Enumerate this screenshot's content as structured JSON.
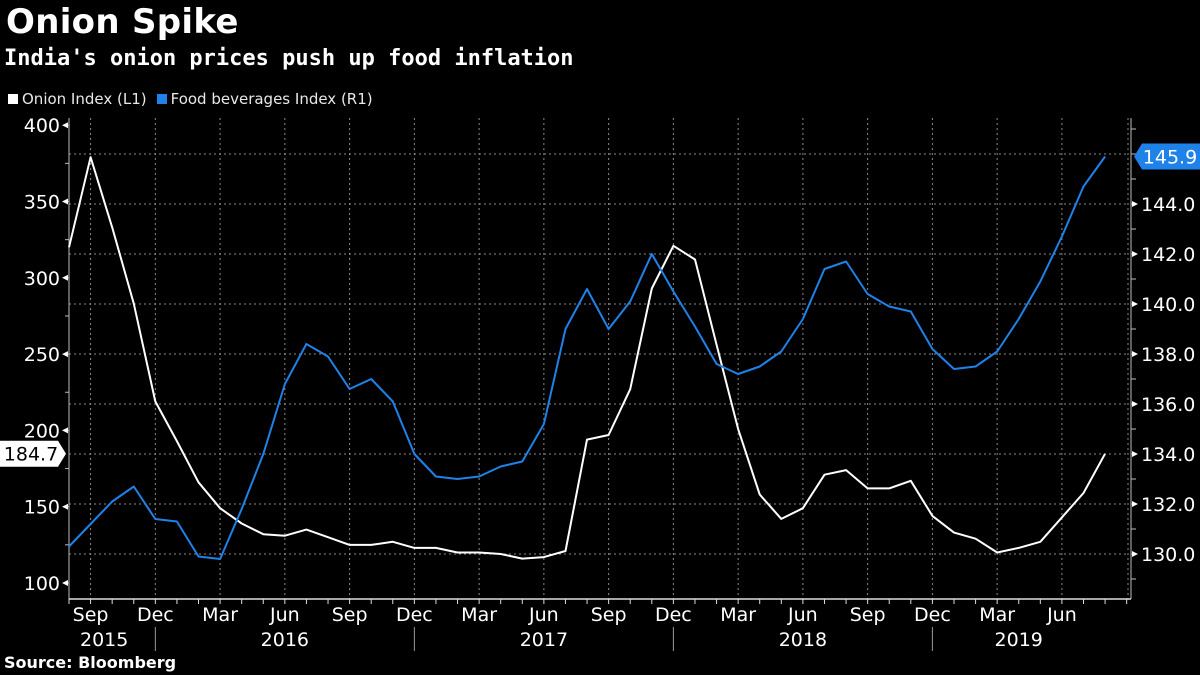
{
  "header": {
    "title": "Onion Spike",
    "subtitle": "India's onion prices push up food inflation"
  },
  "legend": [
    {
      "label": "Onion Index (L1)",
      "color": "#ffffff"
    },
    {
      "label": "Food beverages Index (R1)",
      "color": "#1f82e8"
    }
  ],
  "footer": {
    "source": "Source: Bloomberg"
  },
  "chart_data": {
    "type": "line",
    "title": "Onion Spike",
    "subtitle": "India's onion prices push up food inflation",
    "x": [
      "2015-08",
      "2015-09",
      "2015-10",
      "2015-11",
      "2015-12",
      "2016-01",
      "2016-02",
      "2016-03",
      "2016-04",
      "2016-05",
      "2016-06",
      "2016-07",
      "2016-08",
      "2016-09",
      "2016-10",
      "2016-11",
      "2016-12",
      "2017-01",
      "2017-02",
      "2017-03",
      "2017-04",
      "2017-05",
      "2017-06",
      "2017-07",
      "2017-08",
      "2017-09",
      "2017-10",
      "2017-11",
      "2017-12",
      "2018-01",
      "2018-02",
      "2018-03",
      "2018-04",
      "2018-05",
      "2018-06",
      "2018-07",
      "2018-08",
      "2018-09",
      "2018-10",
      "2018-11",
      "2018-12",
      "2019-01",
      "2019-02",
      "2019-03",
      "2019-04",
      "2019-05",
      "2019-06",
      "2019-07",
      "2019-08"
    ],
    "series": [
      {
        "name": "Onion Index (L1)",
        "axis": "left",
        "color": "#ffffff",
        "values": [
          320,
          379,
          333,
          283,
          219,
          193,
          166,
          149,
          139,
          132,
          131,
          135,
          130,
          125,
          125,
          127,
          123,
          123,
          120,
          120,
          119,
          116,
          117,
          121,
          194,
          197,
          227,
          293,
          321,
          312,
          256,
          201,
          158,
          142,
          149,
          171,
          174,
          162,
          162,
          167,
          144,
          133,
          129,
          120,
          123,
          127,
          143,
          159,
          184.7
        ],
        "last_value_label": "184.7"
      },
      {
        "name": "Food beverages Index (R1)",
        "axis": "right",
        "color": "#1f82e8",
        "values": [
          130.3,
          131.2,
          132.1,
          132.7,
          131.4,
          131.3,
          129.9,
          129.8,
          131.8,
          134.0,
          136.8,
          138.4,
          137.9,
          136.6,
          137.0,
          136.1,
          134.0,
          133.1,
          133.0,
          133.1,
          133.5,
          133.7,
          135.2,
          139.0,
          140.6,
          139.0,
          140.1,
          142.0,
          140.5,
          139.1,
          137.6,
          137.2,
          137.5,
          138.1,
          139.4,
          141.4,
          141.7,
          140.4,
          139.9,
          139.7,
          138.2,
          137.4,
          137.5,
          138.1,
          139.4,
          140.9,
          142.7,
          144.7,
          145.9
        ],
        "last_value_label": "145.9"
      }
    ],
    "left_axis": {
      "ticks": [
        100,
        150,
        200,
        250,
        300,
        350,
        400
      ],
      "range": [
        94,
        410
      ]
    },
    "right_axis": {
      "ticks": [
        "130.0",
        "132.0",
        "134.0",
        "136.0",
        "138.0",
        "140.0",
        "142.0",
        "144.0"
      ],
      "range": [
        128.2,
        147.4
      ]
    },
    "x_axis": {
      "month_labels": [
        {
          "month": "2015-09",
          "label": "Sep"
        },
        {
          "month": "2015-12",
          "label": "Dec"
        },
        {
          "month": "2016-03",
          "label": "Mar"
        },
        {
          "month": "2016-06",
          "label": "Jun"
        },
        {
          "month": "2016-09",
          "label": "Sep"
        },
        {
          "month": "2016-12",
          "label": "Dec"
        },
        {
          "month": "2017-03",
          "label": "Mar"
        },
        {
          "month": "2017-06",
          "label": "Jun"
        },
        {
          "month": "2017-09",
          "label": "Sep"
        },
        {
          "month": "2017-12",
          "label": "Dec"
        },
        {
          "month": "2018-03",
          "label": "Mar"
        },
        {
          "month": "2018-06",
          "label": "Jun"
        },
        {
          "month": "2018-09",
          "label": "Sep"
        },
        {
          "month": "2018-12",
          "label": "Dec"
        },
        {
          "month": "2019-03",
          "label": "Mar"
        },
        {
          "month": "2019-06",
          "label": "Jun"
        }
      ],
      "year_labels": [
        {
          "year": "2015",
          "center": "2015-10"
        },
        {
          "year": "2016",
          "center": "2016-06"
        },
        {
          "year": "2017",
          "center": "2017-06"
        },
        {
          "year": "2018",
          "center": "2018-06"
        },
        {
          "year": "2019",
          "center": "2019-04"
        }
      ],
      "year_separators": [
        "2015-12",
        "2016-12",
        "2017-12",
        "2018-12"
      ],
      "last_tick": "2019-09"
    },
    "grid": true,
    "legend_position": "top-left"
  }
}
